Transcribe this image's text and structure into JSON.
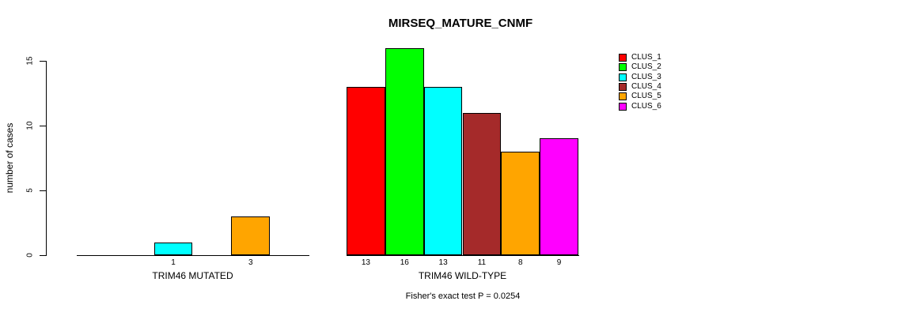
{
  "chart_data": {
    "type": "bar",
    "title": "MIRSEQ_MATURE_CNMF",
    "ylabel": "number of cases",
    "xlabel": "",
    "ylim": [
      0,
      16
    ],
    "yticks": [
      0,
      5,
      10,
      15
    ],
    "grid": false,
    "legend_position": "right",
    "categories": [
      "TRIM46 MUTATED",
      "TRIM46 WILD-TYPE"
    ],
    "series": [
      {
        "name": "CLUS_1",
        "color": "#FF0000",
        "values": [
          0,
          13
        ]
      },
      {
        "name": "CLUS_2",
        "color": "#00FF00",
        "values": [
          0,
          16
        ]
      },
      {
        "name": "CLUS_3",
        "color": "#00FFFF",
        "values": [
          1,
          13
        ]
      },
      {
        "name": "CLUS_4",
        "color": "#A52A2A",
        "values": [
          0,
          11
        ]
      },
      {
        "name": "CLUS_5",
        "color": "#FFA500",
        "values": [
          3,
          8
        ]
      },
      {
        "name": "CLUS_6",
        "color": "#FF00FF",
        "values": [
          0,
          9
        ]
      }
    ],
    "bar_value_labels": [
      "1",
      "3",
      "13",
      "16",
      "13",
      "11",
      "8",
      "9"
    ],
    "annotation": "Fisher's exact test P = 0.0254"
  }
}
